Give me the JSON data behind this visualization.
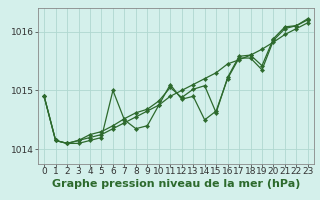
{
  "title": "Graphe pression niveau de la mer (hPa)",
  "x_labels": [
    "0",
    "1",
    "2",
    "3",
    "4",
    "5",
    "6",
    "7",
    "8",
    "9",
    "10",
    "11",
    "12",
    "13",
    "14",
    "15",
    "16",
    "17",
    "18",
    "19",
    "20",
    "21",
    "22",
    "23"
  ],
  "hours": [
    0,
    1,
    2,
    3,
    4,
    5,
    6,
    7,
    8,
    9,
    10,
    11,
    12,
    13,
    14,
    15,
    16,
    17,
    18,
    19,
    20,
    21,
    22,
    23
  ],
  "series": [
    [
      1014.9,
      1014.15,
      1014.1,
      1014.1,
      1014.15,
      1014.2,
      1015.0,
      1014.5,
      1014.35,
      1014.4,
      1014.75,
      1015.1,
      1014.85,
      1014.9,
      1014.5,
      1014.65,
      1015.2,
      1015.55,
      1015.55,
      1015.35,
      1015.85,
      1016.05,
      1016.1,
      1016.2
    ],
    [
      1014.9,
      1014.15,
      1014.1,
      1014.15,
      1014.2,
      1014.25,
      1014.35,
      1014.45,
      1014.55,
      1014.65,
      1014.75,
      1014.9,
      1015.0,
      1015.1,
      1015.2,
      1015.3,
      1015.45,
      1015.52,
      1015.6,
      1015.7,
      1015.82,
      1015.95,
      1016.05,
      1016.15
    ],
    [
      1014.9,
      1014.15,
      1014.1,
      1014.15,
      1014.25,
      1014.3,
      1014.4,
      1014.52,
      1014.62,
      1014.68,
      1014.82,
      1015.05,
      1014.88,
      1015.02,
      1015.08,
      1014.62,
      1015.22,
      1015.58,
      1015.6,
      1015.42,
      1015.88,
      1016.08,
      1016.1,
      1016.22
    ]
  ],
  "line_color": "#2d6a2d",
  "marker_color": "#2d6a2d",
  "bg_color": "#d4f0eb",
  "grid_color": "#b0d8d0",
  "ylim": [
    1013.75,
    1016.4
  ],
  "yticks": [
    1014,
    1015,
    1016
  ],
  "xlim": [
    -0.5,
    23.5
  ],
  "title_fontsize": 8,
  "tick_fontsize": 6.5,
  "linewidth": 0.9,
  "markersize": 2.2
}
